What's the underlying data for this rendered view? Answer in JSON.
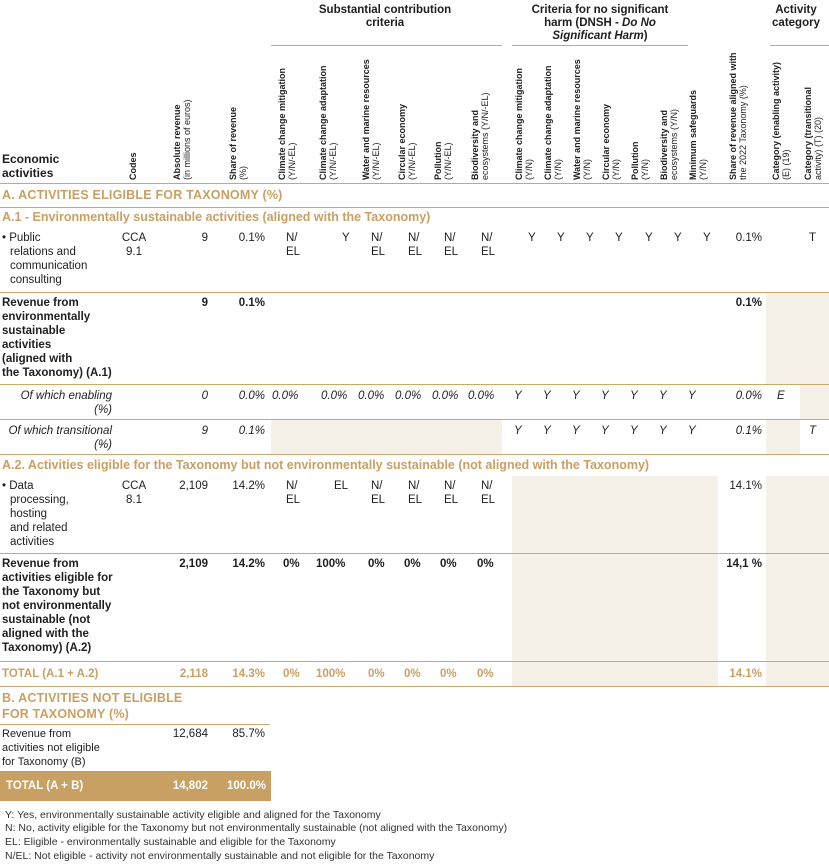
{
  "header": {
    "group_substantial": "Substantial contribution criteria",
    "group_dnsh_a": "Criteria for no significant harm (DNSH - ",
    "group_dnsh_b": "Do No Significant Harm",
    "group_dnsh_c": ")",
    "group_activity": "Activity category",
    "economic_activities": "Economic activities",
    "codes": "Codes",
    "abs_rev_a": "Absolute revenue",
    "abs_rev_b": "(in millions of euros)",
    "share_a": "Share of revenue",
    "share_b": "(%)",
    "sc": [
      {
        "a": "Climate change mitigation",
        "b": "(Y/N/-EL)"
      },
      {
        "a": "Climate change adaptation",
        "b": "(Y/N/-EL)"
      },
      {
        "a": "Water and marine resources",
        "b": "(Y/N/-EL)"
      },
      {
        "a": "Circular economy",
        "b": "(Y/N/-EL)"
      },
      {
        "a": "Pollution",
        "b": "(Y/N/-EL)"
      },
      {
        "a": "Biodiversity and",
        "b": "ecosystems (Y/N/-EL)"
      }
    ],
    "dnsh": [
      {
        "a": "Climate change mitigation",
        "b": "(Y/N)"
      },
      {
        "a": "Climate change adaptation",
        "b": "(Y/N)"
      },
      {
        "a": "Water and marine resources",
        "b": "(Y/N)"
      },
      {
        "a": "Circular economy",
        "b": "(Y/N)"
      },
      {
        "a": "Pollution",
        "b": "(Y/N)"
      },
      {
        "a": "Biodiversity and",
        "b": "ecosystems (Y/N)"
      },
      {
        "a": "Minimum safeguards",
        "b": "(Y/N)"
      }
    ],
    "aligned_a": "Share of revenue aligned with",
    "aligned_b": "the 2022 Taxonomy (%)",
    "cat_e_a": "Category (enabling activity)",
    "cat_e_b": "(E) (19)",
    "cat_t_a": "Category (transitional",
    "cat_t_b": "activity) (T) (20)"
  },
  "section_a": "A. ACTIVITIES ELIGIBLE FOR TAXONOMY (%)",
  "sub_a1": "A.1 - Environmentally sustainable activities (aligned with the Taxonomy)",
  "row_pr": {
    "name": [
      "• Public",
      "relations and",
      "communication",
      "consulting"
    ],
    "code": [
      "CCA",
      "9.1"
    ],
    "abs": "9",
    "share": "0.1%",
    "sc": [
      [
        "N/",
        "EL"
      ],
      [
        "Y",
        ""
      ],
      [
        "N/",
        "EL"
      ],
      [
        "N/",
        "EL"
      ],
      [
        "N/",
        "EL"
      ],
      [
        "N/",
        "EL"
      ]
    ],
    "dnsh": [
      "Y",
      "Y",
      "Y",
      "Y",
      "Y",
      "Y",
      "Y"
    ],
    "aligned": "0.1%",
    "cat_t": "T"
  },
  "row_a1_total": {
    "name": [
      "Revenue from",
      "environmentally",
      "sustainable",
      "activities",
      "(aligned with",
      "the Taxonomy) (A.1)"
    ],
    "abs": "9",
    "share": "0.1%",
    "aligned": "0.1%"
  },
  "row_enabling": {
    "name": [
      "Of which enabling",
      "(%)"
    ],
    "abs": "0",
    "share": "0.0%",
    "sc": [
      "0.0%",
      "0.0%",
      "0.0%",
      "0.0%",
      "0.0%",
      "0.0%"
    ],
    "dnsh": [
      "Y",
      "Y",
      "Y",
      "Y",
      "Y",
      "Y",
      "Y"
    ],
    "aligned": "0.0%",
    "cat_e": "E"
  },
  "row_transitional": {
    "name": [
      "Of which transitional",
      "(%)"
    ],
    "abs": "9",
    "share": "0.1%",
    "dnsh": [
      "Y",
      "Y",
      "Y",
      "Y",
      "Y",
      "Y",
      "Y"
    ],
    "aligned": "0.1%",
    "cat_t": "T"
  },
  "sub_a2": "A.2. Activities eligible for the Taxonomy but not environmentally sustainable (not aligned with the Taxonomy)",
  "row_dp": {
    "name": [
      "• Data",
      "processing,",
      "hosting",
      "and related",
      "activities"
    ],
    "code": [
      "CCA",
      "8.1"
    ],
    "abs": "2,109",
    "share": "14.2%",
    "sc": [
      [
        "N/",
        "EL"
      ],
      [
        "EL",
        ""
      ],
      [
        "N/",
        "EL"
      ],
      [
        "N/",
        "EL"
      ],
      [
        "N/",
        "EL"
      ],
      [
        "N/",
        "EL"
      ]
    ],
    "aligned": "14.1%"
  },
  "row_a2_total": {
    "name": [
      "Revenue from",
      "activities eligible for",
      "the Taxonomy but",
      "not environmentally",
      "sustainable (not",
      "aligned with the",
      "Taxonomy) (A.2)"
    ],
    "abs": "2,109",
    "share": "14.2%",
    "sc": [
      "0%",
      "100%",
      "0%",
      "0%",
      "0%",
      "0%"
    ],
    "aligned": "14,1 %"
  },
  "row_total_a": {
    "name": "TOTAL (A.1 + A.2)",
    "abs": "2,118",
    "share": "14.3%",
    "sc": [
      "0%",
      "100%",
      "0%",
      "0%",
      "0%",
      "0%"
    ],
    "aligned": "14.1%"
  },
  "section_b": [
    "B. ACTIVITIES NOT ELIGIBLE",
    "FOR TAXONOMY (%)"
  ],
  "row_b": {
    "name": [
      "Revenue from",
      "activities not eligible",
      "for Taxonomy (B)"
    ],
    "abs": "12,684",
    "share": "85.7%"
  },
  "row_total_ab": {
    "name": "TOTAL (A + B)",
    "abs": "14,802",
    "share": "100.0%"
  },
  "legend": [
    "Y: Yes, environmentally sustainable activity eligible and aligned for the Taxonomy",
    "N: No, activity eligible for the Taxonomy but not environmentally sustainable (not aligned with the Taxonomy)",
    "EL: Eligible - environmentally sustainable and eligible for the Taxonomy",
    "N/EL: Not eligible - activity not environmentally sustainable and not eligible for the Taxonomy"
  ],
  "colors": {
    "gold": "#c9a063",
    "shade": "#f5f0e8",
    "rule": "#c8a96a"
  }
}
